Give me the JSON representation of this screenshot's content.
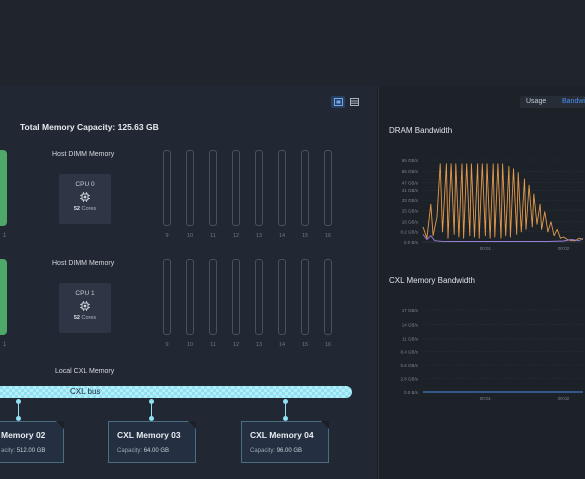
{
  "header": {
    "total_capacity": "Total Memory Capacity: 125.63 GB"
  },
  "view_toggle": {
    "active": "diagram"
  },
  "left_slots": {
    "label_top": "1",
    "label_bottom": "1"
  },
  "host_dimm": [
    {
      "title": "Host DIMM Memory",
      "cpu_name": "CPU 0",
      "cores": "52",
      "cores_label": "Cores",
      "slot_labels": [
        "9",
        "10",
        "11",
        "12",
        "13",
        "14",
        "15",
        "16"
      ]
    },
    {
      "title": "Host DIMM Memory",
      "cpu_name": "CPU 1",
      "cores": "52",
      "cores_label": "Cores",
      "slot_labels": [
        "9",
        "10",
        "11",
        "12",
        "13",
        "14",
        "15",
        "16"
      ]
    }
  ],
  "cxl": {
    "section_title": "Local CXL Memory",
    "bus_label": "CXL bus",
    "cards": [
      {
        "name": "Memory 02",
        "cap_label": "acity:",
        "cap_value": "512.00 GB"
      },
      {
        "name": "CXL Memory 03",
        "cap_label": "Capacity:",
        "cap_value": "64.00 GB"
      },
      {
        "name": "CXL Memory 04",
        "cap_label": "Capacity:",
        "cap_value": "96.00 GB"
      }
    ]
  },
  "right_panel": {
    "tabs": [
      {
        "label": "Usage"
      },
      {
        "label": "Bandwi"
      }
    ],
    "active_tab": "Bandwi"
  },
  "colors": {
    "accent": "#4a8ff0",
    "green": "#4ea86a",
    "cxl": "#8fe0f2",
    "series_a": "#e39a4a",
    "series_b": "#9b7fd4"
  },
  "chart_data": [
    {
      "type": "line",
      "title": "DRAM Bandwidth",
      "ytick_labels": [
        "0.0 B/s",
        "8.2 GB/s",
        "16 GB/s",
        "25 GB/s",
        "33 GB/s",
        "41 GB/s",
        "47 GB/s",
        "56 GB/s",
        "65 GB/s"
      ],
      "yticks": [
        0,
        8.2,
        16,
        25,
        33,
        41,
        47,
        56,
        65
      ],
      "xtick_labels": [
        "00:01",
        "00:02"
      ],
      "xticks": [
        1,
        2
      ],
      "ylim": [
        0,
        65
      ],
      "xlim": [
        0.2,
        2.25
      ],
      "series": [
        {
          "color": "#e39a4a",
          "x": [
            0.2,
            0.25,
            0.3,
            0.33,
            0.38,
            0.42,
            0.45,
            0.5,
            0.52,
            0.56,
            0.6,
            0.62,
            0.66,
            0.7,
            0.72,
            0.76,
            0.8,
            0.82,
            0.86,
            0.9,
            0.92,
            0.96,
            1.0,
            1.02,
            1.06,
            1.1,
            1.12,
            1.16,
            1.2,
            1.22,
            1.26,
            1.3,
            1.32,
            1.36,
            1.4,
            1.42,
            1.46,
            1.5,
            1.52,
            1.56,
            1.6,
            1.62,
            1.66,
            1.7,
            1.72,
            1.76,
            1.8,
            1.84,
            1.88,
            1.92,
            1.96,
            2.0,
            2.05,
            2.1,
            2.15,
            2.2,
            2.25
          ],
          "y": [
            12,
            3,
            30,
            5,
            20,
            62,
            8,
            62,
            3,
            62,
            6,
            62,
            4,
            62,
            3,
            62,
            5,
            62,
            4,
            62,
            3,
            62,
            5,
            62,
            3,
            62,
            4,
            62,
            3,
            62,
            5,
            60,
            4,
            58,
            6,
            55,
            8,
            50,
            10,
            45,
            12,
            38,
            14,
            30,
            10,
            24,
            8,
            16,
            5,
            10,
            3,
            4,
            2,
            1,
            1,
            3,
            2
          ]
        },
        {
          "color": "#9b7fd4",
          "x": [
            0.2,
            0.25,
            0.3,
            0.35,
            0.45,
            0.6,
            0.8,
            1.0,
            1.2,
            1.4,
            1.6,
            1.8,
            2.0,
            2.1,
            2.2,
            2.25
          ],
          "y": [
            6,
            2,
            5,
            1,
            0.5,
            0.4,
            0.4,
            0.4,
            0.4,
            0.4,
            0.4,
            0.4,
            0.8,
            2,
            1,
            3
          ]
        }
      ]
    },
    {
      "type": "line",
      "title": "CXL Memory Bandwidth",
      "ytick_labels": [
        "0.0 B/s",
        "2.8 GB/s",
        "5.6 GB/s",
        "8.4 GB/s",
        "11 GB/s",
        "14 GB/s",
        "17 GB/s"
      ],
      "yticks": [
        0,
        2.8,
        5.6,
        8.4,
        11,
        14,
        17
      ],
      "xtick_labels": [
        "00:01",
        "00:02"
      ],
      "xticks": [
        1,
        2
      ],
      "ylim": [
        0,
        17
      ],
      "xlim": [
        0.2,
        2.25
      ],
      "series": [
        {
          "color": "#4a8ff0",
          "x": [
            0.2,
            2.25
          ],
          "y": [
            0,
            0
          ]
        }
      ]
    }
  ]
}
